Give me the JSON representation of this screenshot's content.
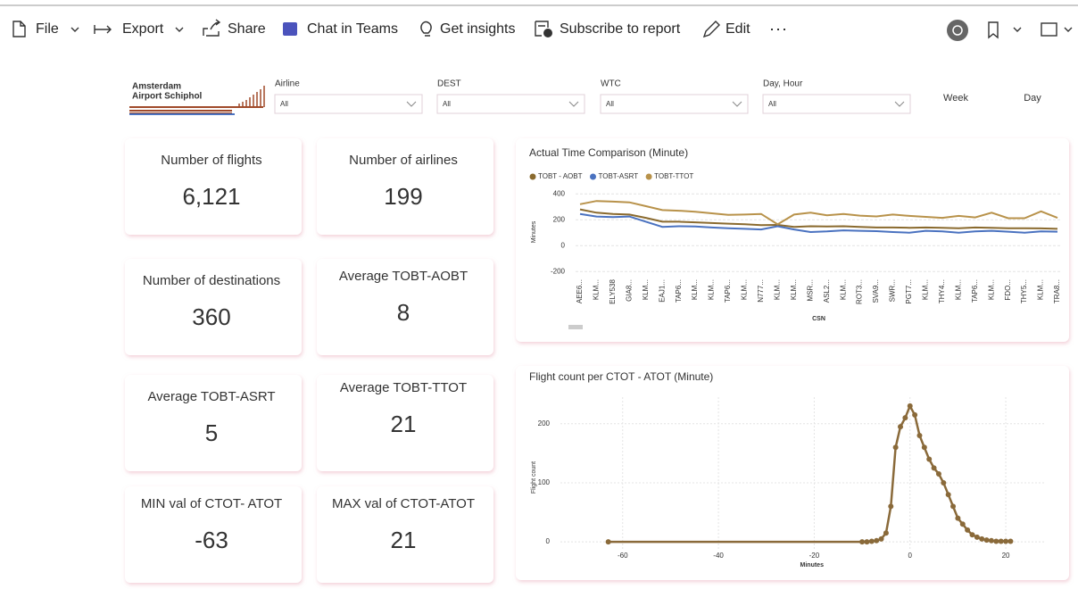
{
  "toolbar": {
    "items": [
      "File",
      "Export",
      "Share",
      "Chat in Teams",
      "Get insights",
      "Subscribe to report",
      "Edit"
    ]
  },
  "logo": {
    "lines": [
      "Amsterdam",
      "Airport Schiphol"
    ]
  },
  "filters": [
    {
      "label": "Airline",
      "value": "All"
    },
    {
      "label": "DEST",
      "value": "All"
    },
    {
      "label": "WTC",
      "value": "All"
    },
    {
      "label": "Day, Hour",
      "value": "All"
    }
  ],
  "toggles": [
    "Week",
    "Day"
  ],
  "cards": [
    {
      "title": "Number of flights",
      "value": "6,121",
      "color": "#444444"
    },
    {
      "title": "Number of airlines",
      "value": "199",
      "color": "#444444"
    },
    {
      "title": "Number of destinations",
      "value": "360",
      "color": "#444444"
    },
    {
      "title": "Average TOBT-AOBT",
      "value": "8",
      "color": "#a9803a"
    },
    {
      "title": "Average TOBT-ASRT",
      "value": "5",
      "color": "#4a6cbc"
    },
    {
      "title": "Average TOBT-TTOT",
      "value": "21",
      "color": "#a9803a"
    },
    {
      "title": "MIN val of CTOT- ATOT",
      "value": "-63",
      "color": "#444444"
    },
    {
      "title": "MAX val of CTOT-ATOT",
      "value": "21",
      "color": "#444444"
    }
  ],
  "charts": [
    {
      "type": "line",
      "title": "Actual Time Comparison (Minute)",
      "x_label": "CSN",
      "y_label": "Minutes",
      "categories": [
        "AEE6...",
        "KLM...",
        "ELY538",
        "GIA8...",
        "KLM...",
        "EAJ1...",
        "TAP6...",
        "KLM...",
        "KLM...",
        "TAP6...",
        "KLM...",
        "N777...",
        "KLM...",
        "KLM...",
        "MSR...",
        "ASL2...",
        "KLM...",
        "ROT3...",
        "SVA9...",
        "SWR...",
        "PGT7...",
        "KLM...",
        "THY4...",
        "KLM...",
        "TAP6...",
        "KLM...",
        "FDO...",
        "THY5...",
        "KLM...",
        "TRA8..."
      ],
      "series": [
        {
          "name": "TOBT - AOBT",
          "color": "#8a6a2e",
          "values": [
            280,
            255,
            245,
            240,
            215,
            185,
            185,
            180,
            175,
            170,
            165,
            158,
            160,
            145,
            150,
            148,
            150,
            145,
            140,
            140,
            138,
            140,
            138,
            135,
            140,
            138,
            135,
            135,
            133,
            130
          ]
        },
        {
          "name": "TOBT-ASRT",
          "color": "#4a72c0",
          "values": [
            245,
            225,
            220,
            225,
            185,
            145,
            150,
            148,
            140,
            135,
            130,
            125,
            150,
            125,
            105,
            110,
            118,
            115,
            112,
            105,
            100,
            115,
            110,
            100,
            110,
            115,
            108,
            100,
            110,
            108
          ]
        },
        {
          "name": "TOBT-TTOT",
          "color": "#b8924a",
          "values": [
            320,
            345,
            340,
            335,
            305,
            275,
            270,
            262,
            250,
            238,
            240,
            245,
            165,
            240,
            255,
            235,
            245,
            232,
            226,
            240,
            230,
            222,
            215,
            230,
            218,
            255,
            212,
            212,
            265,
            215
          ]
        }
      ],
      "ylim": [
        -240,
        450
      ],
      "yticks": [
        400,
        200,
        0,
        -200
      ],
      "grid": true
    },
    {
      "type": "line",
      "title": "Flight count per CTOT - ATOT (Minute)",
      "x_label": "Minutes",
      "y_label": "Flight count",
      "x": [
        -63,
        -10,
        -9,
        -8,
        -7,
        -6,
        -5,
        -4,
        -3,
        -2,
        -1,
        0,
        1,
        2,
        3,
        4,
        5,
        6,
        7,
        8,
        9,
        10,
        11,
        12,
        13,
        14,
        15,
        16,
        17,
        18,
        19,
        20,
        21
      ],
      "values": [
        0,
        0,
        0,
        1,
        2,
        5,
        15,
        60,
        160,
        195,
        210,
        230,
        215,
        180,
        160,
        140,
        125,
        115,
        100,
        80,
        60,
        40,
        30,
        20,
        12,
        8,
        5,
        3,
        2,
        1,
        1,
        1,
        1
      ],
      "color": "#8a6a3a",
      "markers": true,
      "xlim": [
        -73,
        28
      ],
      "xticks": [
        -60,
        -40,
        -20,
        0,
        20
      ],
      "ylim": [
        -27,
        245
      ],
      "yticks": [
        0,
        100,
        200
      ],
      "grid": true
    }
  ]
}
